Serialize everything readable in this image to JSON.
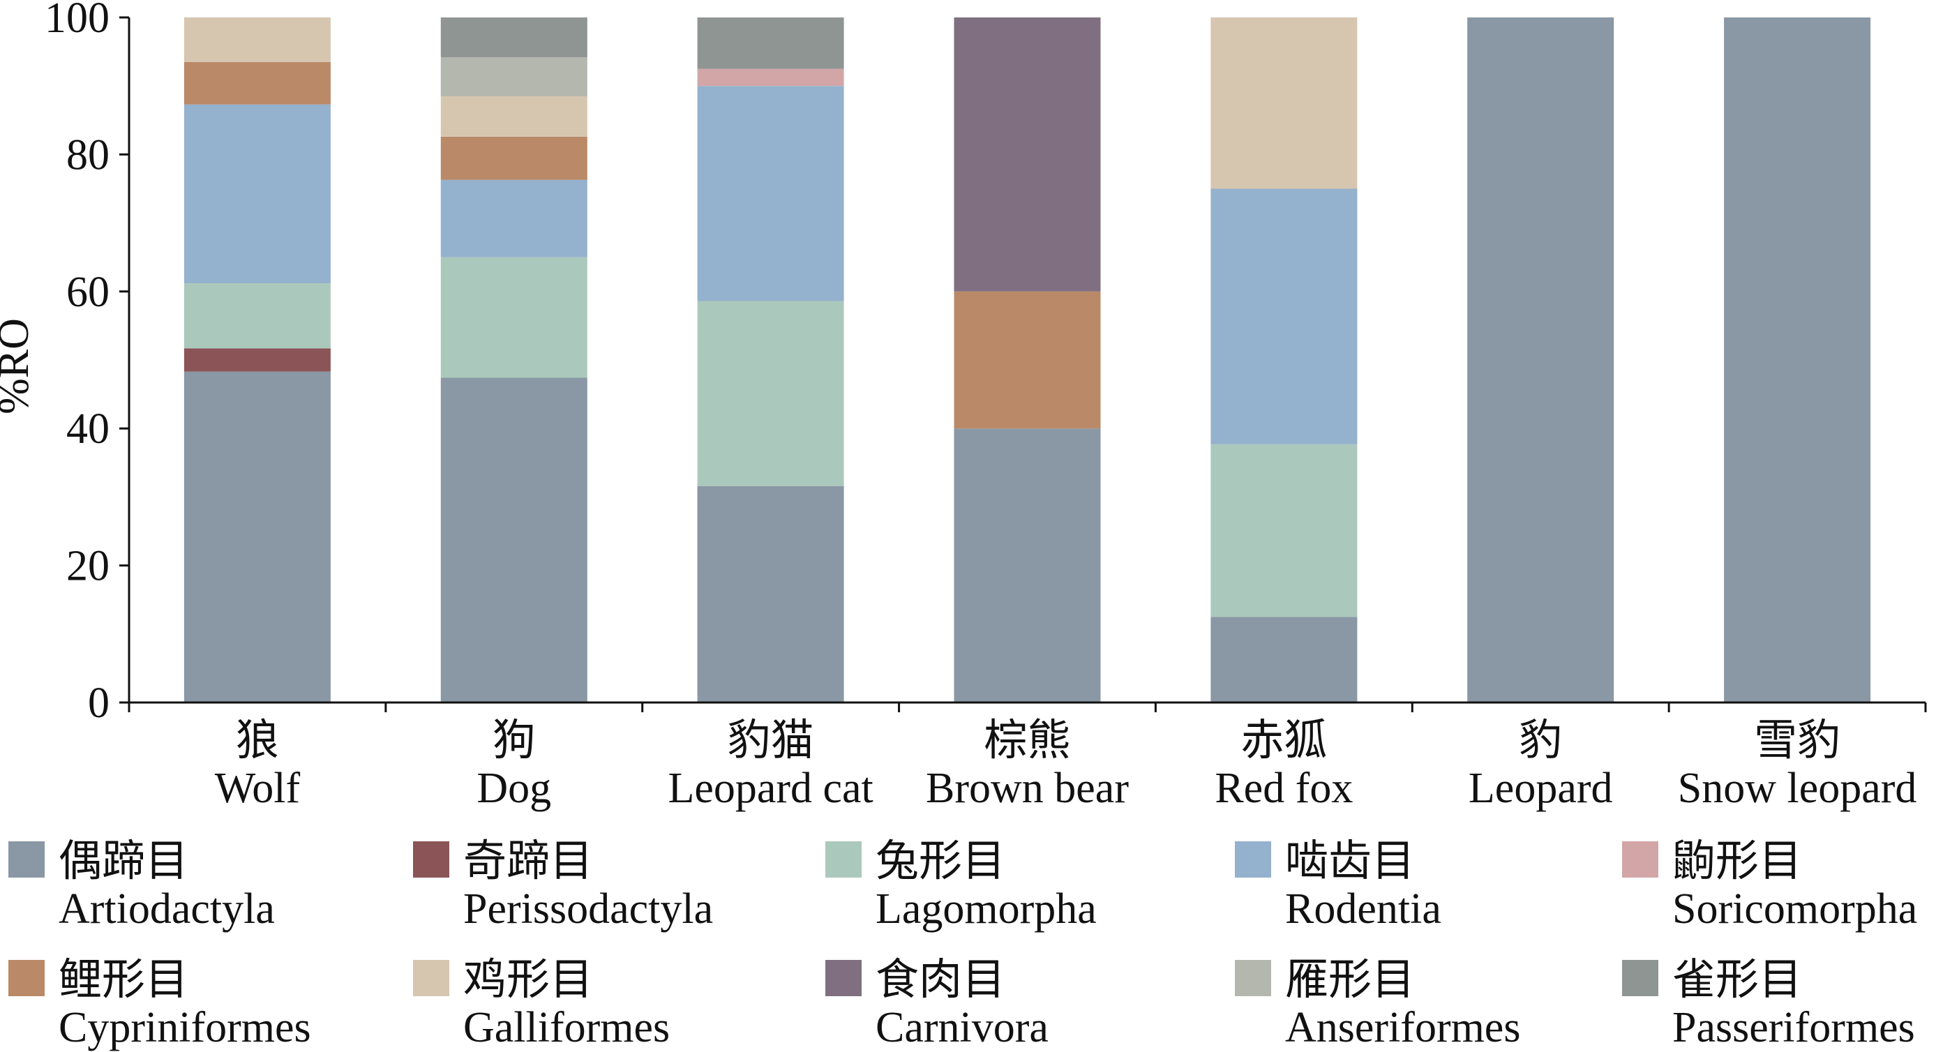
{
  "chart_data": {
    "type": "bar",
    "stacked": true,
    "title": "",
    "xlabel": "",
    "ylabel": "%RO",
    "ylim": [
      0,
      100
    ],
    "yticks": [
      0,
      20,
      40,
      60,
      80,
      100
    ],
    "grid": false,
    "legend_position": "bottom",
    "categories": [
      {
        "zh": "狼",
        "en": "Wolf"
      },
      {
        "zh": "狗",
        "en": "Dog"
      },
      {
        "zh": "豹猫",
        "en": "Leopard cat"
      },
      {
        "zh": "棕熊",
        "en": "Brown bear"
      },
      {
        "zh": "赤狐",
        "en": "Red fox"
      },
      {
        "zh": "豹",
        "en": "Leopard"
      },
      {
        "zh": "雪豹",
        "en": "Snow leopard"
      }
    ],
    "series": [
      {
        "name_zh": "偶蹄目",
        "name": "Artiodactyla",
        "color": "#8a97a4",
        "values": [
          48.3,
          47.4,
          31.6,
          40.0,
          12.5,
          100,
          100
        ]
      },
      {
        "name_zh": "奇蹄目",
        "name": "Perissodactyla",
        "color": "#8b5558",
        "values": [
          3.4,
          0,
          0,
          0,
          0,
          0,
          0
        ]
      },
      {
        "name_zh": "兔形目",
        "name": "Lagomorpha",
        "color": "#abc8bc",
        "values": [
          9.5,
          17.6,
          27.0,
          0,
          25.2,
          0,
          0
        ]
      },
      {
        "name_zh": "啮齿目",
        "name": "Rodentia",
        "color": "#94b1cd",
        "values": [
          26.1,
          11.3,
          31.4,
          0,
          37.3,
          0,
          0
        ]
      },
      {
        "name_zh": "鼩形目",
        "name": "Soricomorpha",
        "color": "#d2a6a7",
        "values": [
          0,
          0,
          2.5,
          0,
          0,
          0,
          0
        ]
      },
      {
        "name_zh": "鲤形目",
        "name": "Cypriniformes",
        "color": "#ba8967",
        "values": [
          6.2,
          6.3,
          0,
          20.0,
          0,
          0,
          0
        ]
      },
      {
        "name_zh": "鸡形目",
        "name": "Galliformes",
        "color": "#d6c6b0",
        "values": [
          6.5,
          5.9,
          0,
          0,
          25.0,
          0,
          0
        ]
      },
      {
        "name_zh": "食肉目",
        "name": "Carnivora",
        "color": "#7f6f80",
        "values": [
          0,
          0,
          0,
          40.0,
          0,
          0,
          0
        ]
      },
      {
        "name_zh": "雁形目",
        "name": "Anseriformes",
        "color": "#b3b7ad",
        "values": [
          0,
          5.7,
          0,
          0,
          0,
          0,
          0
        ]
      },
      {
        "name_zh": "雀形目",
        "name": "Passeriformes",
        "color": "#8f9592",
        "values": [
          0,
          5.8,
          7.5,
          0,
          0,
          0,
          0
        ]
      }
    ]
  }
}
